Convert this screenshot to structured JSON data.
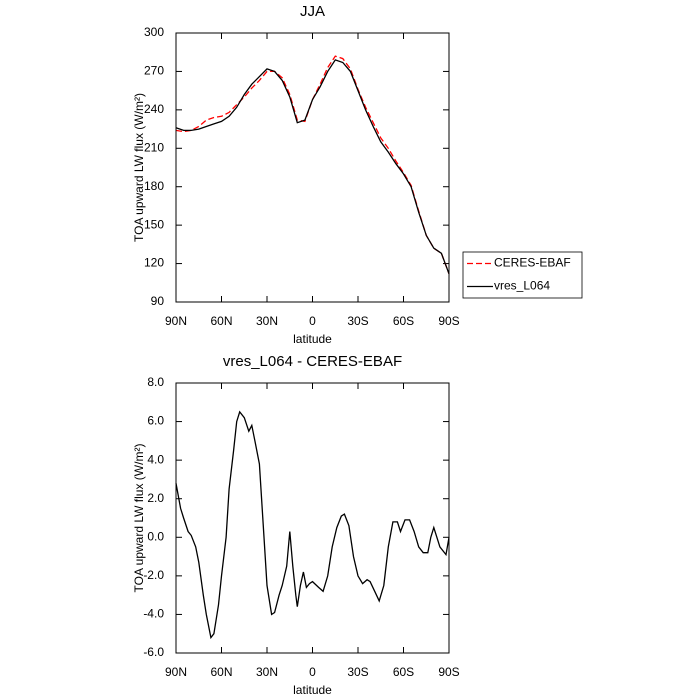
{
  "chart_data": [
    {
      "type": "line",
      "title": "JJA",
      "xlabel": "latitude",
      "ylabel": "TOA upward LW flux (W/m²)",
      "x": [
        90,
        85,
        80,
        75,
        70,
        65,
        60,
        55,
        50,
        45,
        40,
        35,
        30,
        25,
        20,
        15,
        10,
        5,
        0,
        -5,
        -10,
        -15,
        -20,
        -25,
        -30,
        -35,
        -40,
        -45,
        -50,
        -55,
        -60,
        -65,
        -70,
        -75,
        -80,
        -85,
        -90
      ],
      "xlim": [
        90,
        -90
      ],
      "xticks": [
        {
          "value": 90,
          "label": "90N"
        },
        {
          "value": 60,
          "label": "60N"
        },
        {
          "value": 30,
          "label": "30N"
        },
        0,
        {
          "value": -30,
          "label": "30S"
        },
        {
          "value": -60,
          "label": "60S"
        },
        {
          "value": -90,
          "label": "90S"
        }
      ],
      "ylim": [
        90,
        300
      ],
      "yticks": [
        90,
        120,
        150,
        180,
        210,
        240,
        270,
        300
      ],
      "legend": "right",
      "series": [
        {
          "name": "CERES-EBAF",
          "color": "#ff0000",
          "dash": true,
          "values": [
            224,
            223,
            224,
            227,
            232,
            234,
            235,
            238,
            244,
            250,
            257,
            263,
            270,
            270,
            265,
            252,
            232,
            231,
            248,
            260,
            273,
            282,
            280,
            272,
            256,
            242,
            230,
            218,
            210,
            200,
            191,
            181,
            161,
            142,
            132,
            128,
            112
          ]
        },
        {
          "name": "vres_L064",
          "color": "#000000",
          "dash": false,
          "values": [
            226,
            224,
            224,
            225,
            227,
            229,
            231,
            235,
            242,
            252,
            260,
            266,
            272,
            270,
            263,
            250,
            230,
            232,
            248,
            258,
            270,
            279,
            277,
            270,
            255,
            240,
            227,
            215,
            207,
            198,
            190,
            180,
            160,
            142,
            132,
            128,
            112
          ]
        }
      ]
    },
    {
      "type": "line",
      "title": "vres_L064 - CERES-EBAF",
      "xlabel": "latitude",
      "ylabel": "TOA upward LW flux (W/m²)",
      "x": [
        90,
        87,
        85,
        82,
        80,
        77,
        75,
        72,
        70,
        67,
        65,
        62,
        60,
        57,
        55,
        52,
        50,
        48,
        45,
        42,
        40,
        38,
        35,
        32,
        30,
        27,
        25,
        22,
        20,
        17,
        15,
        13,
        11,
        10,
        8,
        6,
        4,
        2,
        0,
        -4,
        -7,
        -10,
        -13,
        -16,
        -19,
        -21,
        -24,
        -27,
        -30,
        -33,
        -36,
        -38,
        -41,
        -44,
        -47,
        -50,
        -53,
        -56,
        -58,
        -61,
        -64,
        -67,
        -70,
        -73,
        -76,
        -78,
        -80,
        -84,
        -88,
        -90
      ],
      "xlim": [
        90,
        -90
      ],
      "xticks": [
        {
          "value": 90,
          "label": "90N"
        },
        {
          "value": 60,
          "label": "60N"
        },
        {
          "value": 30,
          "label": "30N"
        },
        0,
        {
          "value": -30,
          "label": "30S"
        },
        {
          "value": -60,
          "label": "60S"
        },
        {
          "value": -90,
          "label": "90S"
        }
      ],
      "ylim": [
        -6,
        8
      ],
      "yticks": [
        {
          "value": -6,
          "label": "-6.0"
        },
        {
          "value": -4,
          "label": "-4.0"
        },
        {
          "value": -2,
          "label": "-2.0"
        },
        {
          "value": 0,
          "label": "0.0"
        },
        {
          "value": 2,
          "label": "2.0"
        },
        {
          "value": 4,
          "label": "4.0"
        },
        {
          "value": 6,
          "label": "6.0"
        },
        {
          "value": 8,
          "label": "8.0"
        }
      ],
      "color": "#000000",
      "values": [
        2.8,
        1.5,
        1.0,
        0.3,
        0.1,
        -0.5,
        -1.3,
        -3.0,
        -4.0,
        -5.2,
        -5.0,
        -3.5,
        -2.0,
        0,
        2.5,
        4.5,
        6.0,
        6.5,
        6.2,
        5.5,
        5.8,
        5.0,
        3.8,
        0,
        -2.5,
        -4.0,
        -3.9,
        -3.0,
        -2.5,
        -1.5,
        0.3,
        -1.5,
        -3.0,
        -3.6,
        -2.5,
        -1.8,
        -2.6,
        -2.4,
        -2.3,
        -2.6,
        -2.8,
        -2.0,
        -0.5,
        0.5,
        1.1,
        1.2,
        0.6,
        -1.0,
        -2.0,
        -2.4,
        -2.2,
        -2.3,
        -2.8,
        -3.3,
        -2.5,
        -0.5,
        0.8,
        0.8,
        0.3,
        0.9,
        0.9,
        0.3,
        -0.5,
        -0.8,
        -0.8,
        0,
        0.5,
        -0.5,
        -0.9,
        0.0
      ]
    }
  ]
}
